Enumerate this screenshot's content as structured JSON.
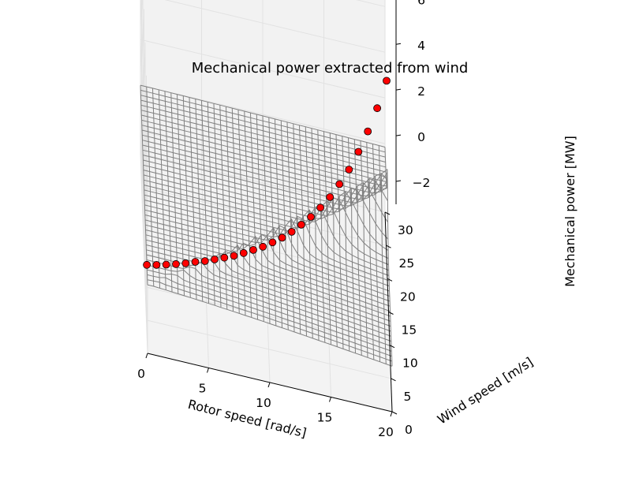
{
  "chart_data": {
    "type": "surface",
    "title": "Mechanical power extracted from wind",
    "xlabel": "Rotor speed [rad/s]",
    "ylabel": "Wind speed [m/s]",
    "zlabel": "Mechanical power [MW]",
    "xlim": [
      0,
      20
    ],
    "ylim": [
      0,
      30
    ],
    "zlim": [
      -3,
      7.7
    ],
    "xticks": [
      "0",
      "5",
      "10",
      "15",
      "20"
    ],
    "yticks": [
      "0",
      "5",
      "10",
      "15",
      "20",
      "25",
      "30"
    ],
    "zticks": [
      "−2",
      "0",
      "2",
      "4",
      "6"
    ],
    "grid": true,
    "surface_color": "#808080",
    "marker_color": "#ff0000",
    "series": [
      {
        "values": [
          {
            "x": 0.0,
            "y": 3.0,
            "z": 0.0
          },
          {
            "x": 0.8,
            "y": 3.3,
            "z": 0.01
          },
          {
            "x": 1.6,
            "y": 3.7,
            "z": 0.01
          },
          {
            "x": 2.4,
            "y": 4.1,
            "z": 0.02
          },
          {
            "x": 3.2,
            "y": 4.5,
            "z": 0.04
          },
          {
            "x": 4.0,
            "y": 5.0,
            "z": 0.06
          },
          {
            "x": 4.8,
            "y": 5.4,
            "z": 0.08
          },
          {
            "x": 5.6,
            "y": 5.9,
            "z": 0.11
          },
          {
            "x": 6.4,
            "y": 6.4,
            "z": 0.14
          },
          {
            "x": 7.2,
            "y": 6.9,
            "z": 0.18
          },
          {
            "x": 8.0,
            "y": 7.5,
            "z": 0.23
          },
          {
            "x": 8.8,
            "y": 8.1,
            "z": 0.29
          },
          {
            "x": 9.6,
            "y": 8.7,
            "z": 0.36
          },
          {
            "x": 10.4,
            "y": 9.4,
            "z": 0.45
          },
          {
            "x": 11.2,
            "y": 10.1,
            "z": 0.55
          },
          {
            "x": 12.0,
            "y": 10.9,
            "z": 0.68
          },
          {
            "x": 12.8,
            "y": 11.8,
            "z": 0.83
          },
          {
            "x": 13.6,
            "y": 12.7,
            "z": 1.01
          },
          {
            "x": 14.4,
            "y": 13.7,
            "z": 1.23
          },
          {
            "x": 15.2,
            "y": 14.7,
            "z": 1.5
          },
          {
            "x": 16.0,
            "y": 15.9,
            "z": 1.82
          },
          {
            "x": 16.8,
            "y": 17.1,
            "z": 2.21
          },
          {
            "x": 17.6,
            "y": 18.5,
            "z": 2.68
          },
          {
            "x": 18.4,
            "y": 20.0,
            "z": 3.24
          },
          {
            "x": 19.2,
            "y": 21.5,
            "z": 3.92
          },
          {
            "x": 20.0,
            "y": 23.2,
            "z": 4.73
          }
        ]
      }
    ]
  }
}
